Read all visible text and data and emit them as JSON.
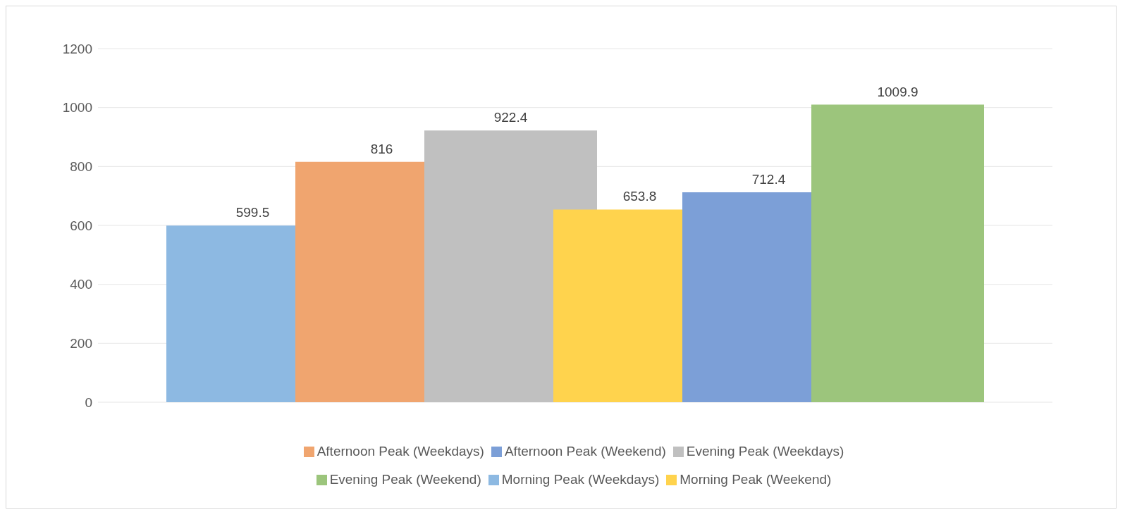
{
  "chart_data": {
    "type": "bar",
    "categories": [
      null
    ],
    "series": [
      {
        "name": "Morning Peak (Weekdays)",
        "color": "#8db9e2",
        "values": [
          599.5
        ]
      },
      {
        "name": "Afternoon Peak (Weekdays)",
        "color": "#f0a56f",
        "values": [
          816
        ]
      },
      {
        "name": "Evening Peak (Weekdays)",
        "color": "#c0c0c0",
        "values": [
          922.4
        ]
      },
      {
        "name": "Morning Peak (Weekend)",
        "color": "#ffd34d",
        "values": [
          653.8
        ]
      },
      {
        "name": "Afternoon Peak (Weekend)",
        "color": "#7c9fd7",
        "values": [
          712.4
        ]
      },
      {
        "name": "Evening Peak (Weekend)",
        "color": "#9cc57c",
        "values": [
          1009.9
        ]
      }
    ],
    "ylim": [
      0,
      1200
    ],
    "yticks": [
      0,
      200,
      400,
      600,
      800,
      1000,
      1200
    ],
    "grid": "y",
    "legend": "bottom",
    "data_labels": true
  }
}
